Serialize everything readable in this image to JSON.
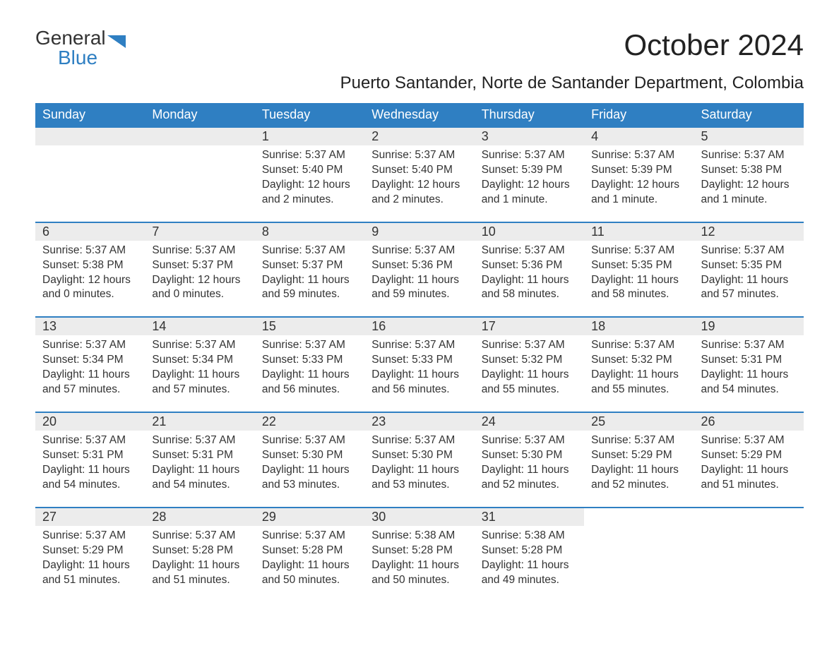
{
  "logo": {
    "line1": "General",
    "line2": "Blue"
  },
  "title": "October 2024",
  "subtitle": "Puerto Santander, Norte de Santander Department, Colombia",
  "colors": {
    "header_bg": "#2f7fc2",
    "header_text": "#ffffff",
    "daynum_bg": "#ececec",
    "border_top": "#2f7fc2",
    "text": "#333333",
    "background": "#ffffff",
    "logo_blue": "#2f7fc2"
  },
  "weekdays": [
    "Sunday",
    "Monday",
    "Tuesday",
    "Wednesday",
    "Thursday",
    "Friday",
    "Saturday"
  ],
  "weeks": [
    [
      null,
      null,
      {
        "n": "1",
        "sr": "Sunrise: 5:37 AM",
        "ss": "Sunset: 5:40 PM",
        "dl": "Daylight: 12 hours and 2 minutes."
      },
      {
        "n": "2",
        "sr": "Sunrise: 5:37 AM",
        "ss": "Sunset: 5:40 PM",
        "dl": "Daylight: 12 hours and 2 minutes."
      },
      {
        "n": "3",
        "sr": "Sunrise: 5:37 AM",
        "ss": "Sunset: 5:39 PM",
        "dl": "Daylight: 12 hours and 1 minute."
      },
      {
        "n": "4",
        "sr": "Sunrise: 5:37 AM",
        "ss": "Sunset: 5:39 PM",
        "dl": "Daylight: 12 hours and 1 minute."
      },
      {
        "n": "5",
        "sr": "Sunrise: 5:37 AM",
        "ss": "Sunset: 5:38 PM",
        "dl": "Daylight: 12 hours and 1 minute."
      }
    ],
    [
      {
        "n": "6",
        "sr": "Sunrise: 5:37 AM",
        "ss": "Sunset: 5:38 PM",
        "dl": "Daylight: 12 hours and 0 minutes."
      },
      {
        "n": "7",
        "sr": "Sunrise: 5:37 AM",
        "ss": "Sunset: 5:37 PM",
        "dl": "Daylight: 12 hours and 0 minutes."
      },
      {
        "n": "8",
        "sr": "Sunrise: 5:37 AM",
        "ss": "Sunset: 5:37 PM",
        "dl": "Daylight: 11 hours and 59 minutes."
      },
      {
        "n": "9",
        "sr": "Sunrise: 5:37 AM",
        "ss": "Sunset: 5:36 PM",
        "dl": "Daylight: 11 hours and 59 minutes."
      },
      {
        "n": "10",
        "sr": "Sunrise: 5:37 AM",
        "ss": "Sunset: 5:36 PM",
        "dl": "Daylight: 11 hours and 58 minutes."
      },
      {
        "n": "11",
        "sr": "Sunrise: 5:37 AM",
        "ss": "Sunset: 5:35 PM",
        "dl": "Daylight: 11 hours and 58 minutes."
      },
      {
        "n": "12",
        "sr": "Sunrise: 5:37 AM",
        "ss": "Sunset: 5:35 PM",
        "dl": "Daylight: 11 hours and 57 minutes."
      }
    ],
    [
      {
        "n": "13",
        "sr": "Sunrise: 5:37 AM",
        "ss": "Sunset: 5:34 PM",
        "dl": "Daylight: 11 hours and 57 minutes."
      },
      {
        "n": "14",
        "sr": "Sunrise: 5:37 AM",
        "ss": "Sunset: 5:34 PM",
        "dl": "Daylight: 11 hours and 57 minutes."
      },
      {
        "n": "15",
        "sr": "Sunrise: 5:37 AM",
        "ss": "Sunset: 5:33 PM",
        "dl": "Daylight: 11 hours and 56 minutes."
      },
      {
        "n": "16",
        "sr": "Sunrise: 5:37 AM",
        "ss": "Sunset: 5:33 PM",
        "dl": "Daylight: 11 hours and 56 minutes."
      },
      {
        "n": "17",
        "sr": "Sunrise: 5:37 AM",
        "ss": "Sunset: 5:32 PM",
        "dl": "Daylight: 11 hours and 55 minutes."
      },
      {
        "n": "18",
        "sr": "Sunrise: 5:37 AM",
        "ss": "Sunset: 5:32 PM",
        "dl": "Daylight: 11 hours and 55 minutes."
      },
      {
        "n": "19",
        "sr": "Sunrise: 5:37 AM",
        "ss": "Sunset: 5:31 PM",
        "dl": "Daylight: 11 hours and 54 minutes."
      }
    ],
    [
      {
        "n": "20",
        "sr": "Sunrise: 5:37 AM",
        "ss": "Sunset: 5:31 PM",
        "dl": "Daylight: 11 hours and 54 minutes."
      },
      {
        "n": "21",
        "sr": "Sunrise: 5:37 AM",
        "ss": "Sunset: 5:31 PM",
        "dl": "Daylight: 11 hours and 54 minutes."
      },
      {
        "n": "22",
        "sr": "Sunrise: 5:37 AM",
        "ss": "Sunset: 5:30 PM",
        "dl": "Daylight: 11 hours and 53 minutes."
      },
      {
        "n": "23",
        "sr": "Sunrise: 5:37 AM",
        "ss": "Sunset: 5:30 PM",
        "dl": "Daylight: 11 hours and 53 minutes."
      },
      {
        "n": "24",
        "sr": "Sunrise: 5:37 AM",
        "ss": "Sunset: 5:30 PM",
        "dl": "Daylight: 11 hours and 52 minutes."
      },
      {
        "n": "25",
        "sr": "Sunrise: 5:37 AM",
        "ss": "Sunset: 5:29 PM",
        "dl": "Daylight: 11 hours and 52 minutes."
      },
      {
        "n": "26",
        "sr": "Sunrise: 5:37 AM",
        "ss": "Sunset: 5:29 PM",
        "dl": "Daylight: 11 hours and 51 minutes."
      }
    ],
    [
      {
        "n": "27",
        "sr": "Sunrise: 5:37 AM",
        "ss": "Sunset: 5:29 PM",
        "dl": "Daylight: 11 hours and 51 minutes."
      },
      {
        "n": "28",
        "sr": "Sunrise: 5:37 AM",
        "ss": "Sunset: 5:28 PM",
        "dl": "Daylight: 11 hours and 51 minutes."
      },
      {
        "n": "29",
        "sr": "Sunrise: 5:37 AM",
        "ss": "Sunset: 5:28 PM",
        "dl": "Daylight: 11 hours and 50 minutes."
      },
      {
        "n": "30",
        "sr": "Sunrise: 5:38 AM",
        "ss": "Sunset: 5:28 PM",
        "dl": "Daylight: 11 hours and 50 minutes."
      },
      {
        "n": "31",
        "sr": "Sunrise: 5:38 AM",
        "ss": "Sunset: 5:28 PM",
        "dl": "Daylight: 11 hours and 49 minutes."
      },
      null,
      null
    ]
  ]
}
